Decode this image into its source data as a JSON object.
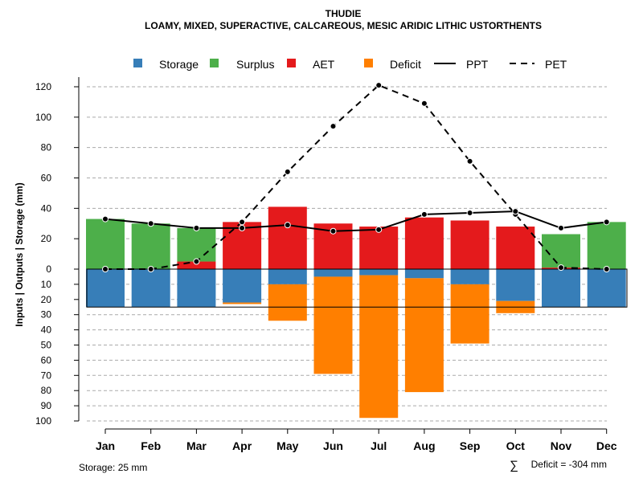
{
  "chart_data": {
    "type": "bar",
    "title": "THUDIE",
    "subtitle": "LOAMY, MIXED, SUPERACTIVE, CALCAREOUS, MESIC ARIDIC LITHIC USTORTHENTS",
    "ylabel": "Inputs | Outputs | Storage    (mm)",
    "categories": [
      "Jan",
      "Feb",
      "Mar",
      "Apr",
      "May",
      "Jun",
      "Jul",
      "Aug",
      "Sep",
      "Oct",
      "Nov",
      "Dec"
    ],
    "upper_ticks": [
      "0",
      "20",
      "40",
      "60",
      "80",
      "100",
      "120"
    ],
    "lower_ticks": [
      "10",
      "20",
      "30",
      "40",
      "50",
      "60",
      "70",
      "80",
      "90",
      "100"
    ],
    "ylim_upper": [
      0,
      130
    ],
    "ylim_lower": [
      0,
      100
    ],
    "legend": {
      "storage": "Storage",
      "surplus": "Surplus",
      "aet": "AET",
      "deficit": "Deficit",
      "ppt": "PPT",
      "pet": "PET"
    },
    "colors": {
      "storage": "#377EB8",
      "surplus": "#4DAF4A",
      "aet": "#E41A1C",
      "deficit": "#FF7F00"
    },
    "series": [
      {
        "name": "Surplus",
        "values": [
          33,
          30,
          22,
          0,
          0,
          0,
          0,
          0,
          0,
          0,
          22,
          31
        ]
      },
      {
        "name": "AET",
        "values": [
          0,
          0,
          5,
          31,
          41,
          30,
          28,
          34,
          32,
          28,
          1,
          0
        ]
      },
      {
        "name": "Storage",
        "values": [
          25,
          25,
          25,
          22,
          10,
          5,
          4,
          6,
          10,
          21,
          25,
          25
        ]
      },
      {
        "name": "Deficit",
        "values": [
          0,
          0,
          0,
          1,
          24,
          64,
          94,
          75,
          39,
          8,
          0,
          0
        ]
      },
      {
        "name": "PPT",
        "values": [
          33,
          30,
          27,
          27,
          29,
          25,
          26,
          36,
          37,
          38,
          27,
          31
        ]
      },
      {
        "name": "PET",
        "values": [
          0,
          0,
          5,
          31,
          64,
          94,
          121,
          109,
          71,
          36,
          1,
          0
        ]
      }
    ],
    "storage_capacity": 25,
    "grid": true
  },
  "notes": {
    "storage": "Storage: 25 mm",
    "deficit_symbol": "∑",
    "deficit_sum": "Deficit = -304 mm"
  }
}
